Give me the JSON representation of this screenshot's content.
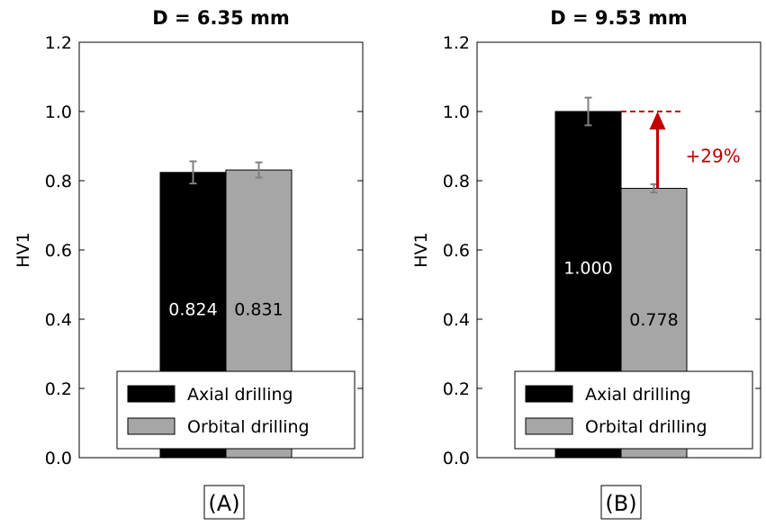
{
  "chart_data": [
    {
      "type": "bar",
      "title": "D = 6.35 mm",
      "ylabel": "HV1",
      "ylim": [
        0.0,
        1.2
      ],
      "yticks": [
        "0.0",
        "0.2",
        "0.4",
        "0.6",
        "0.8",
        "1.0",
        "1.2"
      ],
      "series": [
        {
          "name": "Axial drilling",
          "value": 0.824,
          "label": "0.824",
          "err": 0.032,
          "color": "#000000",
          "label_color": "#ffffff",
          "label_value": 0.43
        },
        {
          "name": "Orbital drilling",
          "value": 0.831,
          "label": "0.831",
          "err": 0.022,
          "color": "#a6a6a6",
          "label_color": "#000000",
          "label_value": 0.43
        }
      ],
      "legend": "lower-center",
      "panel_label": "(A)"
    },
    {
      "type": "bar",
      "title": "D = 9.53 mm",
      "ylabel": "HV1",
      "ylim": [
        0.0,
        1.2
      ],
      "yticks": [
        "0.0",
        "0.2",
        "0.4",
        "0.6",
        "0.8",
        "1.0",
        "1.2"
      ],
      "series": [
        {
          "name": "Axial drilling",
          "value": 1.0,
          "label": "1.000",
          "err": 0.04,
          "color": "#000000",
          "label_color": "#ffffff",
          "label_value": 0.55
        },
        {
          "name": "Orbital drilling",
          "value": 0.778,
          "label": "0.778",
          "err": 0.012,
          "color": "#a6a6a6",
          "label_color": "#000000",
          "label_value": 0.4
        }
      ],
      "legend": "lower-center",
      "panel_label": "(B)",
      "annotation": {
        "text": "+29%",
        "from": 0.778,
        "to": 1.0,
        "color": "#c00000"
      }
    }
  ]
}
